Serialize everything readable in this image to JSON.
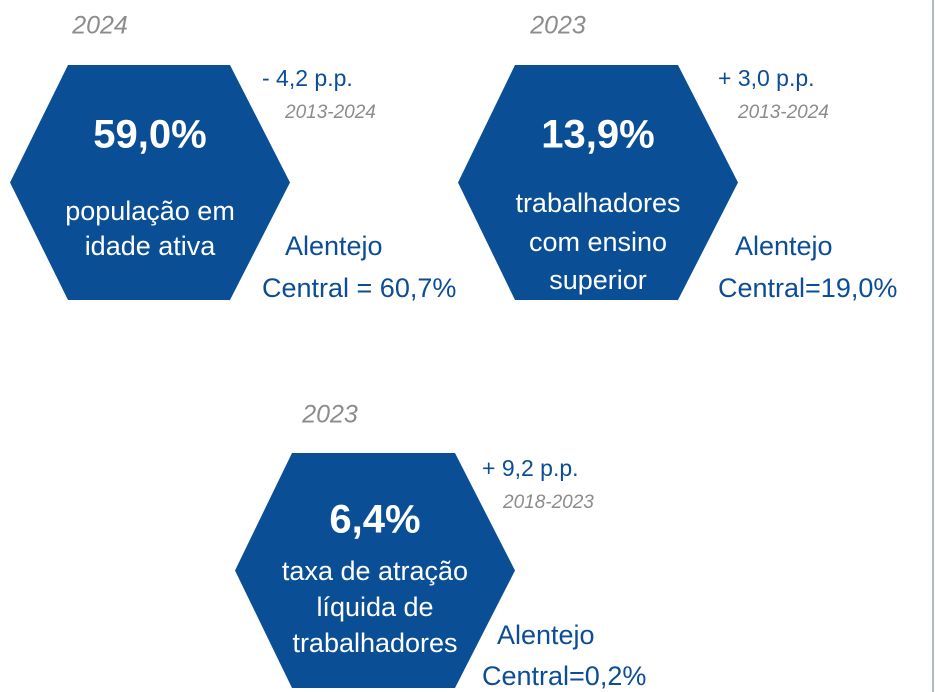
{
  "cards": [
    {
      "year": "2024",
      "value": "59,0%",
      "label_lines": [
        "população em",
        "idade ativa"
      ],
      "change": "- 4,2 p.p.",
      "period": "2013-2024",
      "comparison_lines": [
        "Alentejo",
        "Central = 60,7%"
      ]
    },
    {
      "year": "2023",
      "value": "13,9%",
      "label_lines": [
        "trabalhadores",
        "com ensino",
        "superior"
      ],
      "change": "+ 3,0 p.p.",
      "period": "2013-2024",
      "comparison_lines": [
        "Alentejo",
        "Central=19,0%"
      ]
    },
    {
      "year": "2023",
      "value": "6,4%",
      "label_lines": [
        "taxa de atração",
        "líquida de",
        "trabalhadores"
      ],
      "change": "+ 9,2 p.p.",
      "period": "2018-2023",
      "comparison_lines": [
        "Alentejo",
        "Central=0,2%"
      ]
    }
  ]
}
